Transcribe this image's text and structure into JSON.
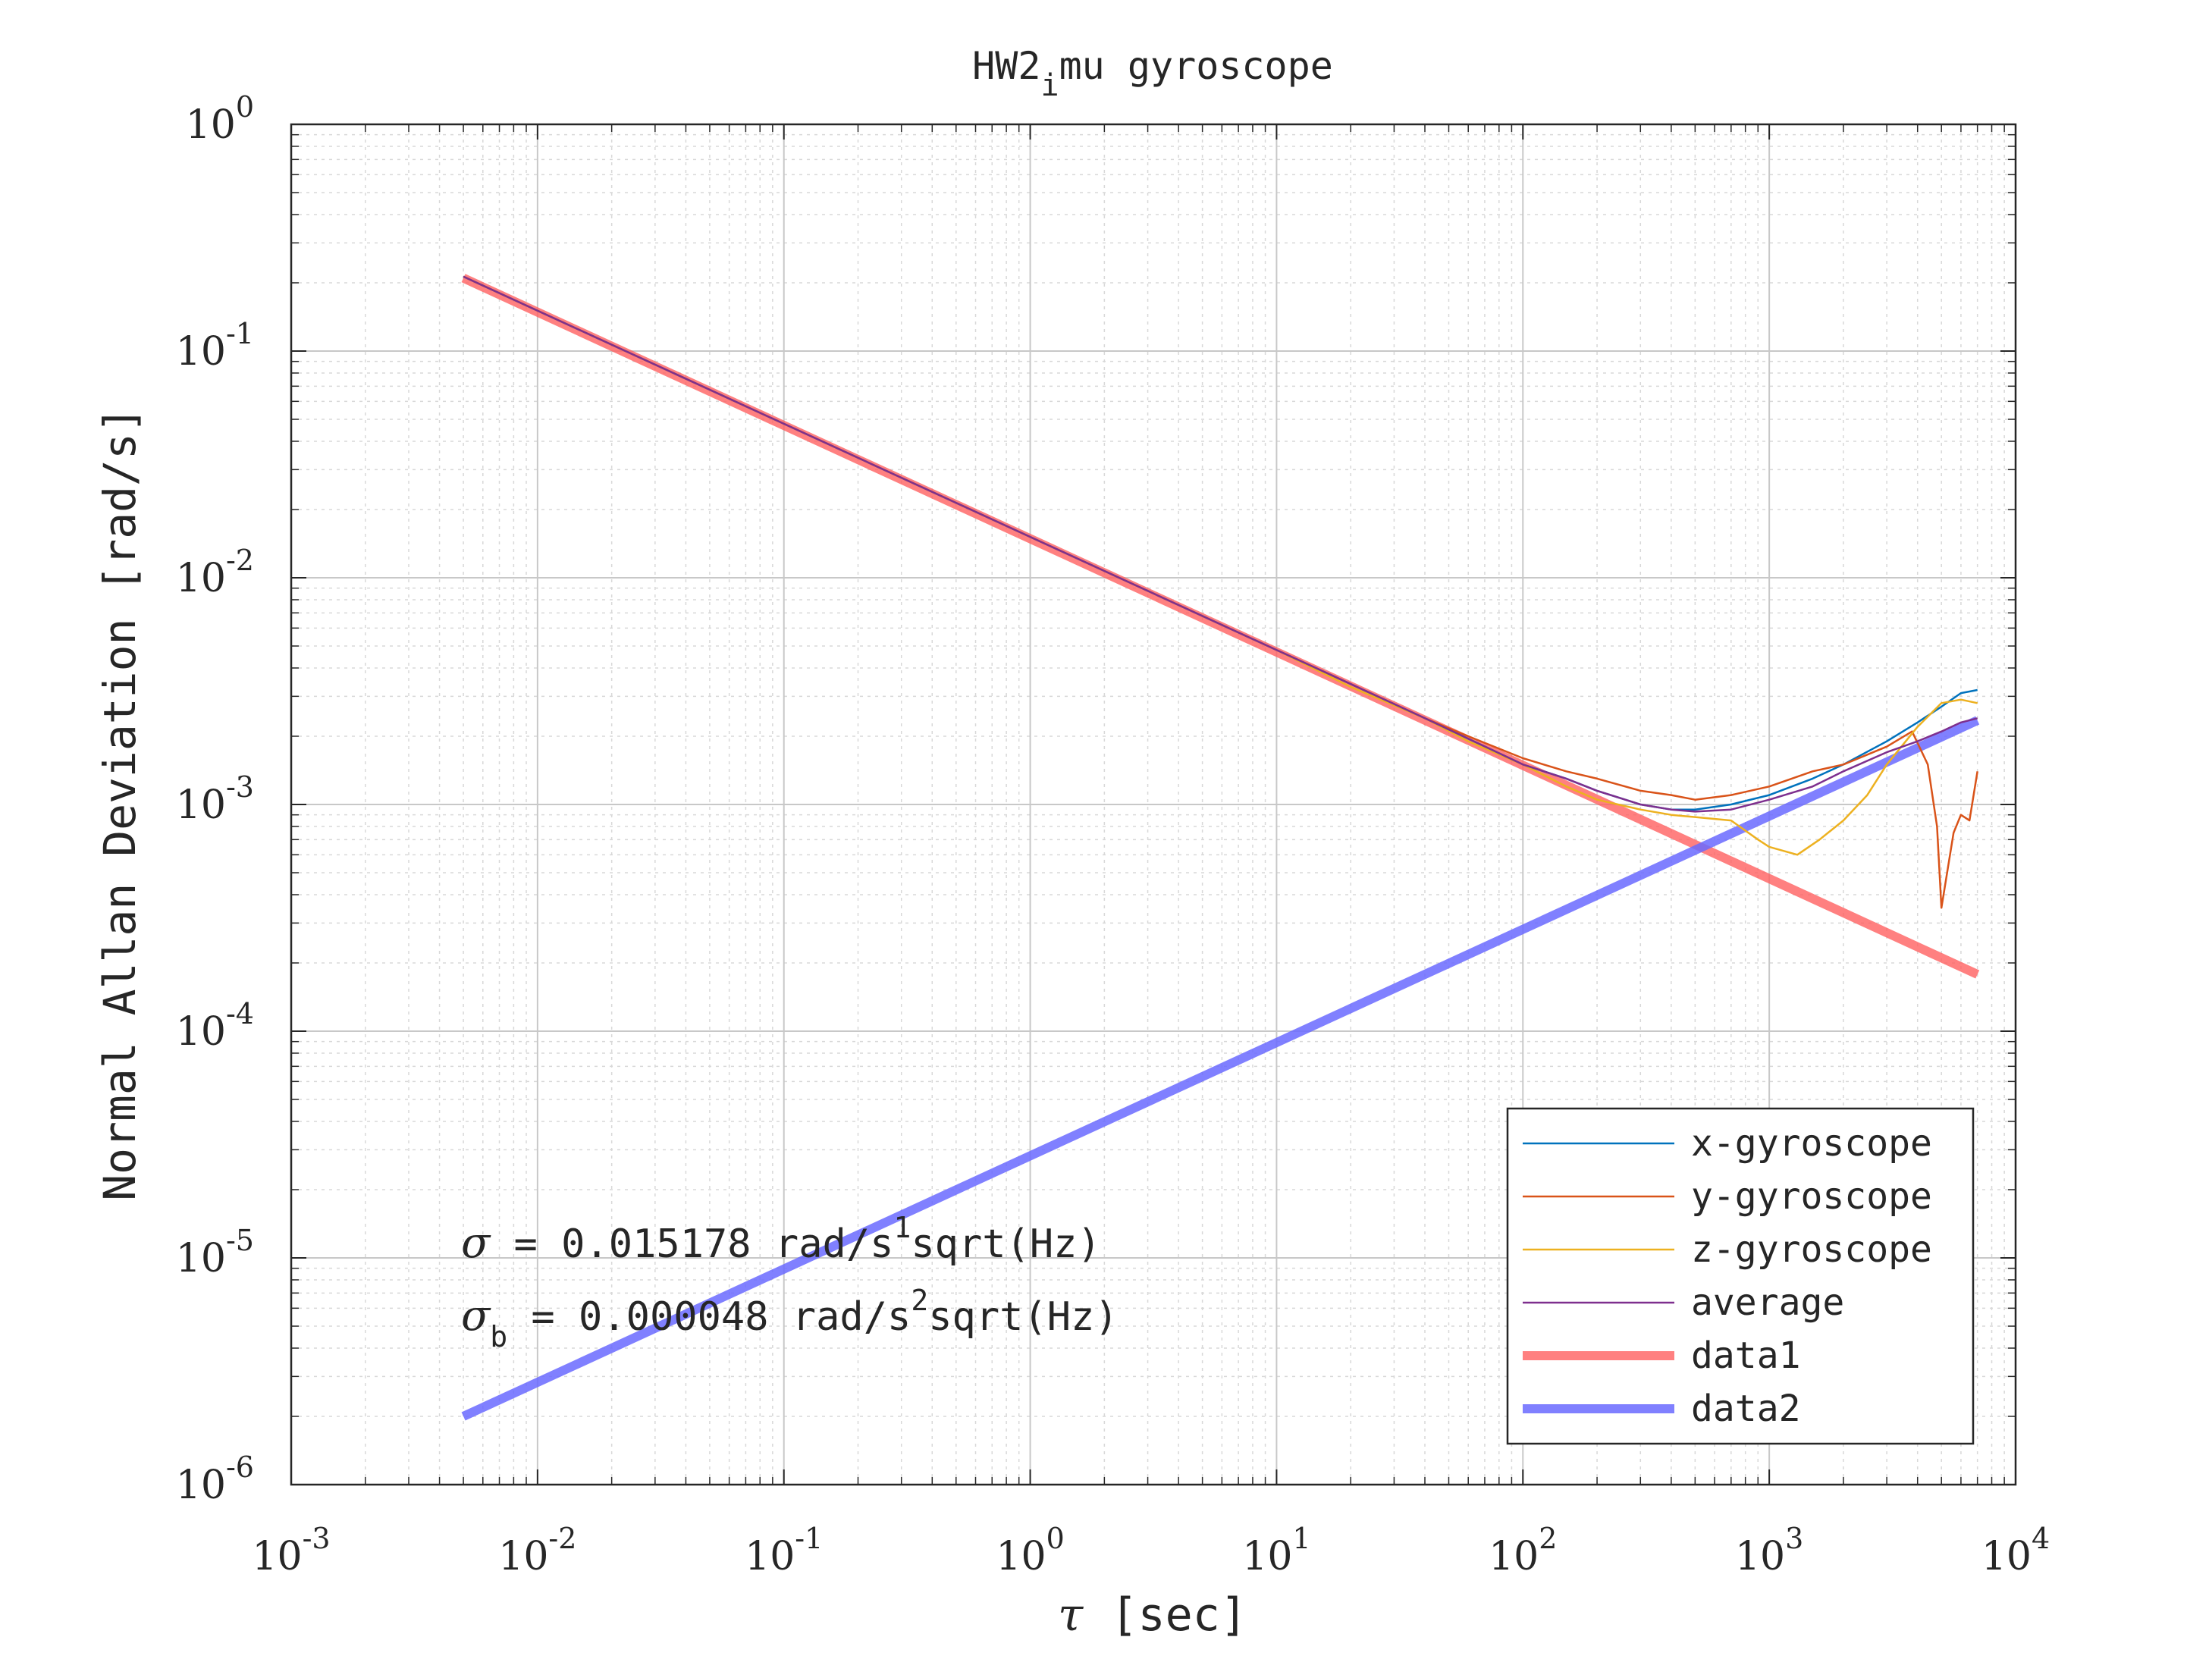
{
  "chart_data": {
    "type": "line",
    "title_main": "HW2",
    "title_sub": "i",
    "title_rest": "mu gyroscope",
    "xlabel_symbol": "τ",
    "xlabel_text": " [sec]",
    "ylabel": "Normal Allan Deviation [rad/s]",
    "xscale": "log",
    "yscale": "log",
    "xlim": [
      0.001,
      10000
    ],
    "ylim": [
      1e-06,
      1
    ],
    "grid": true,
    "minor_grid": true,
    "legend_position": "bottom-right",
    "x_ticks": [
      {
        "value": 0.001,
        "base": "10",
        "exp": "-3"
      },
      {
        "value": 0.01,
        "base": "10",
        "exp": "-2"
      },
      {
        "value": 0.1,
        "base": "10",
        "exp": "-1"
      },
      {
        "value": 1,
        "base": "10",
        "exp": "0"
      },
      {
        "value": 10,
        "base": "10",
        "exp": "1"
      },
      {
        "value": 100,
        "base": "10",
        "exp": "2"
      },
      {
        "value": 1000,
        "base": "10",
        "exp": "3"
      },
      {
        "value": 10000,
        "base": "10",
        "exp": "4"
      }
    ],
    "y_ticks": [
      {
        "value": 1e-06,
        "base": "10",
        "exp": "-6"
      },
      {
        "value": 1e-05,
        "base": "10",
        "exp": "-5"
      },
      {
        "value": 0.0001,
        "base": "10",
        "exp": "-4"
      },
      {
        "value": 0.001,
        "base": "10",
        "exp": "-3"
      },
      {
        "value": 0.01,
        "base": "10",
        "exp": "-2"
      },
      {
        "value": 0.1,
        "base": "10",
        "exp": "-1"
      },
      {
        "value": 1,
        "base": "10",
        "exp": "0"
      }
    ],
    "series": [
      {
        "name": "x-gyroscope",
        "color": "#0072BD",
        "width": 1,
        "x": [
          0.005,
          10,
          20,
          40,
          60,
          100,
          150,
          200,
          300,
          400,
          500,
          700,
          1000,
          1500,
          2000,
          3000,
          4000,
          5000,
          6000,
          7000
        ],
        "y": [
          0.213,
          0.0048,
          0.0034,
          0.0024,
          0.00195,
          0.0015,
          0.0013,
          0.00115,
          0.001,
          0.00095,
          0.00095,
          0.001,
          0.0011,
          0.0013,
          0.0015,
          0.0019,
          0.0023,
          0.0027,
          0.0031,
          0.0032
        ]
      },
      {
        "name": "y-gyroscope",
        "color": "#D95319",
        "width": 1,
        "x": [
          0.005,
          10,
          20,
          40,
          60,
          100,
          150,
          200,
          300,
          400,
          500,
          700,
          1000,
          1500,
          2000,
          3000,
          3800,
          4400,
          4800,
          5000,
          5600,
          6000,
          6500,
          7000
        ],
        "y": [
          0.213,
          0.0048,
          0.0034,
          0.0024,
          0.002,
          0.0016,
          0.0014,
          0.0013,
          0.00115,
          0.0011,
          0.00105,
          0.0011,
          0.0012,
          0.0014,
          0.0015,
          0.0018,
          0.0021,
          0.0015,
          0.0008,
          0.00035,
          0.00075,
          0.0009,
          0.00085,
          0.0014
        ]
      },
      {
        "name": "z-gyroscope",
        "color": "#EDB120",
        "width": 1,
        "x": [
          0.005,
          10,
          20,
          40,
          60,
          100,
          150,
          200,
          300,
          400,
          500,
          700,
          900,
          1000,
          1300,
          1600,
          2000,
          2500,
          3000,
          4000,
          5000,
          6000,
          7000
        ],
        "y": [
          0.213,
          0.0048,
          0.0033,
          0.0024,
          0.0019,
          0.0015,
          0.0012,
          0.00105,
          0.00095,
          0.0009,
          0.00088,
          0.00085,
          0.0007,
          0.00065,
          0.0006,
          0.0007,
          0.00085,
          0.0011,
          0.0015,
          0.0022,
          0.0028,
          0.0029,
          0.0028
        ]
      },
      {
        "name": "average",
        "color": "#7E2F8E",
        "width": 1,
        "x": [
          0.005,
          10,
          20,
          40,
          60,
          100,
          150,
          200,
          300,
          400,
          500,
          700,
          1000,
          1500,
          2000,
          3000,
          4000,
          5000,
          6000,
          7000
        ],
        "y": [
          0.213,
          0.0048,
          0.0034,
          0.0024,
          0.00195,
          0.0015,
          0.0013,
          0.00115,
          0.001,
          0.00095,
          0.00093,
          0.00095,
          0.00105,
          0.0012,
          0.0014,
          0.0017,
          0.0019,
          0.0021,
          0.0023,
          0.0024
        ]
      },
      {
        "name": "data1",
        "color": "#FF6060",
        "width": 12,
        "opacity": 0.8,
        "x": [
          0.005,
          7000
        ],
        "y": [
          0.21,
          0.000178
        ]
      },
      {
        "name": "data2",
        "color": "#6A6AFF",
        "width": 12,
        "opacity": 0.85,
        "x": [
          0.005,
          7000
        ],
        "y": [
          2e-06,
          0.00235
        ]
      }
    ],
    "annotations": [
      {
        "sym": "σ",
        "sub": "",
        "pre": " = 0.015178 rad/s",
        "sup": "1",
        "post": "sqrt(Hz)"
      },
      {
        "sym": "σ",
        "sub": "b",
        "pre": " = 0.000048 rad/s",
        "sup": "2",
        "post": "sqrt(Hz)"
      }
    ]
  }
}
